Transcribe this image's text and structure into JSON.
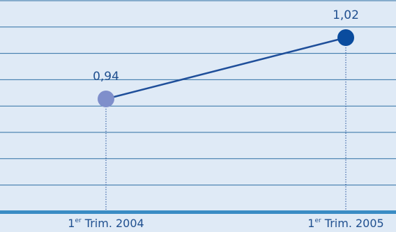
{
  "chart_data": {
    "type": "line",
    "categories": [
      "1er Trim. 2004",
      "1er Trim. 2005"
    ],
    "category_parts": [
      {
        "num": "1",
        "sup": "er",
        "rest": " Trim. 2004"
      },
      {
        "num": "1",
        "sup": "er",
        "rest": " Trim. 2005"
      }
    ],
    "values": [
      0.94,
      1.02
    ],
    "value_labels": [
      "0,94",
      "1,02"
    ],
    "title": "",
    "xlabel": "",
    "ylabel": "",
    "grid": true,
    "colors": {
      "background": "#dfeaf6",
      "gridline": "#2e6fa3",
      "baseline": "#3a8cc4",
      "line": "#1f4f9a",
      "point_first": "#7f8fcb",
      "point_last": "#0a4c9e",
      "label": "#1f4f8f"
    }
  }
}
